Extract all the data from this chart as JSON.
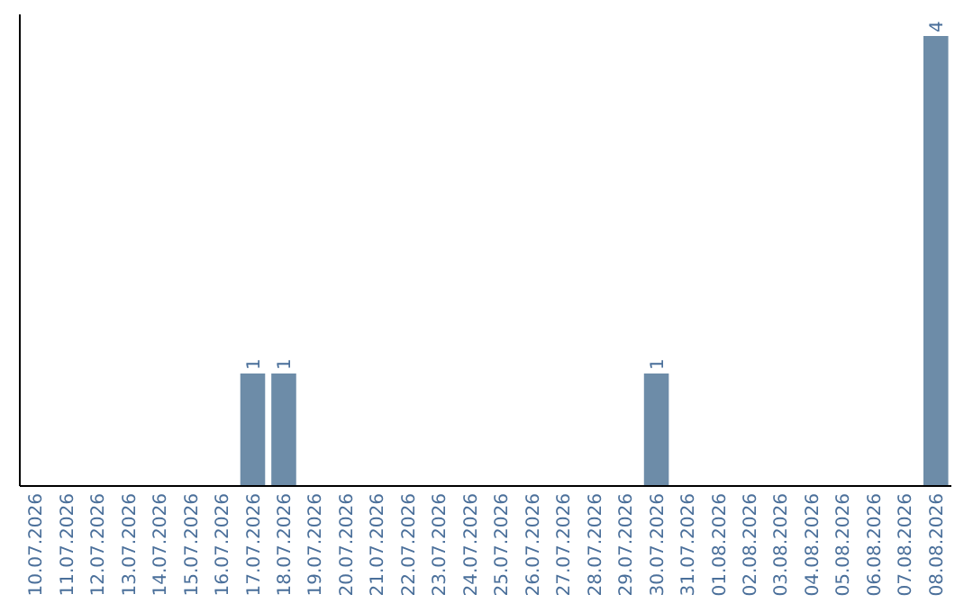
{
  "chart_data": {
    "type": "bar",
    "categories": [
      "10.07.2026",
      "11.07.2026",
      "12.07.2026",
      "13.07.2026",
      "14.07.2026",
      "15.07.2026",
      "16.07.2026",
      "17.07.2026",
      "18.07.2026",
      "19.07.2026",
      "20.07.2026",
      "21.07.2026",
      "22.07.2026",
      "23.07.2026",
      "24.07.2026",
      "25.07.2026",
      "26.07.2026",
      "27.07.2026",
      "28.07.2026",
      "29.07.2026",
      "30.07.2026",
      "31.07.2026",
      "01.08.2026",
      "02.08.2026",
      "03.08.2026",
      "04.08.2026",
      "05.08.2026",
      "06.08.2026",
      "07.08.2026",
      "08.08.2026"
    ],
    "values": [
      0,
      0,
      0,
      0,
      0,
      0,
      0,
      1,
      1,
      0,
      0,
      0,
      0,
      0,
      0,
      0,
      0,
      0,
      0,
      0,
      1,
      0,
      0,
      0,
      0,
      0,
      0,
      0,
      0,
      4
    ],
    "value_labels": [
      null,
      null,
      null,
      null,
      null,
      null,
      null,
      "1",
      "1",
      null,
      null,
      null,
      null,
      null,
      null,
      null,
      null,
      null,
      null,
      null,
      "1",
      null,
      null,
      null,
      null,
      null,
      null,
      null,
      null,
      "4"
    ],
    "color": "#6d8ca8",
    "tick_labels": "x"
  }
}
